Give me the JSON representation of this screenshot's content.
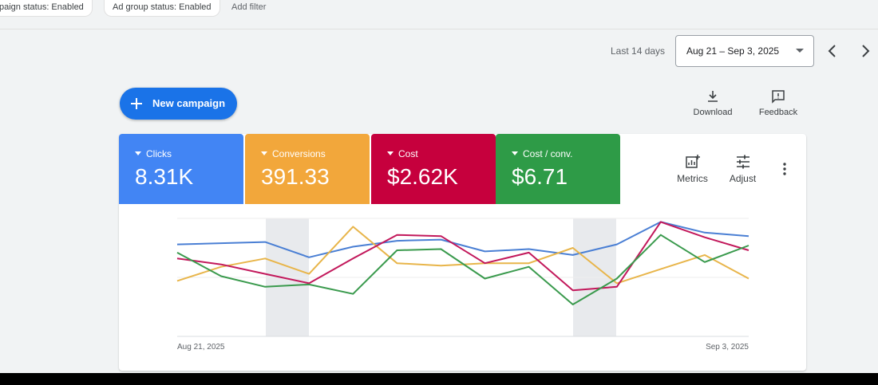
{
  "filters": {
    "chips": [
      "paign status: Enabled",
      "Ad group status: Enabled"
    ],
    "add_filter": "Add filter"
  },
  "date_range": {
    "preset": "Last 14 days",
    "range": "Aug 21 – Sep 3, 2025"
  },
  "actions": {
    "new_campaign": "New campaign",
    "download": "Download",
    "feedback": "Feedback",
    "metrics": "Metrics",
    "adjust": "Adjust"
  },
  "scorecards": [
    {
      "label": "Clicks",
      "value": "8.31K",
      "color": "#4285f4"
    },
    {
      "label": "Conversions",
      "value": "391.33",
      "color": "#f2a73b"
    },
    {
      "label": "Cost",
      "value": "$2.62K",
      "color": "#c6003d"
    },
    {
      "label": "Cost / conv.",
      "value": "$6.71",
      "color": "#2e9b47"
    }
  ],
  "chart_data": {
    "type": "line",
    "categories": [
      "Aug 21, 2025",
      null,
      null,
      null,
      null,
      null,
      null,
      null,
      null,
      null,
      null,
      null,
      null,
      "Sep 3, 2025"
    ],
    "ylim": [
      0,
      100
    ],
    "series": [
      {
        "color": "#4a7fd4",
        "values": [
          78,
          79,
          80,
          67,
          76,
          81,
          82,
          72,
          74,
          69,
          78,
          97,
          88,
          85
        ]
      },
      {
        "color": "#e8b54a",
        "values": [
          47,
          59,
          66,
          53,
          93,
          62,
          60,
          62,
          62,
          75,
          45,
          57,
          69,
          49
        ]
      },
      {
        "color": "#c2185b",
        "values": [
          66,
          61,
          53,
          45,
          66,
          86,
          85,
          62,
          71,
          39,
          42,
          97,
          84,
          73
        ]
      },
      {
        "color": "#3a9a4d",
        "values": [
          71,
          51,
          42,
          44,
          36,
          73,
          74,
          49,
          59,
          27,
          49,
          86,
          63,
          77
        ]
      }
    ]
  }
}
